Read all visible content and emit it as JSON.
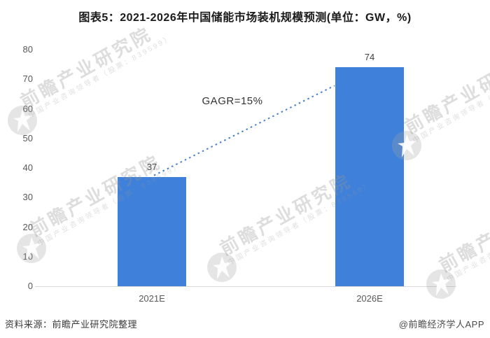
{
  "title": "图表5：2021-2026年中国储能市场装机规模预测(单位：GW，%)",
  "chart_data": {
    "type": "bar",
    "categories": [
      "2021E",
      "2026E"
    ],
    "values": [
      37,
      74
    ],
    "title": "图表5：2021-2026年中国储能市场装机规模预测(单位：GW，%)",
    "unit_label": "单位：GW，%",
    "xlabel": "",
    "ylabel": "",
    "ylim": [
      0,
      80
    ],
    "y_ticks": [
      0,
      10,
      20,
      30,
      40,
      50,
      60,
      70,
      80
    ],
    "grid": "off",
    "legend": "none",
    "annotation": "GAGR=15%",
    "annotation_type": "dotted-growth-line",
    "bar_color": "#3f81da",
    "dotted_line_color": "#4a7fc4",
    "axis_line_color": "#d9d9d9"
  },
  "footer": {
    "source": "资料来源：前瞻产业研究院整理",
    "credit": "@前瞻经济学人APP"
  },
  "watermark": {
    "brand": "前瞻产业研究院",
    "tagline": "中国产业咨询领导者（股票：839599）",
    "logo_icon": "qianzhan-bird-circle-icon"
  }
}
